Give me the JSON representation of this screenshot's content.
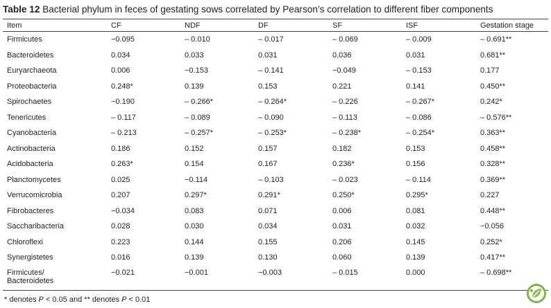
{
  "caption": {
    "label": "Table 12",
    "text": "Bacterial phylum in feces of gestating sows correlated by Pearson’s correlation to different fiber components"
  },
  "table": {
    "headers": [
      "Item",
      "CF",
      "NDF",
      "DF",
      "SF",
      "ISF",
      "Gestation stage"
    ],
    "rows": [
      [
        "Firmicutes",
        "−0.095",
        "– 0.010",
        "– 0.017",
        "– 0.069",
        "– 0.009",
        "– 0.691**"
      ],
      [
        "Bacteroidetes",
        "0.034",
        "0.033",
        "0.031",
        "0.036",
        "0.031",
        "0.681**"
      ],
      [
        "Euryarchaeota",
        "0.006",
        "−0.153",
        "– 0.141",
        "−0.049",
        "– 0.153",
        "0.177"
      ],
      [
        "Proteobacteria",
        "0.248*",
        "0.139",
        "0.153",
        "0.221",
        "0.141",
        "0.450**"
      ],
      [
        "Spirochaetes",
        "−0.190",
        "– 0.266*",
        "– 0.264*",
        "– 0.226",
        "– 0.267*",
        "0.242*"
      ],
      [
        "Tenericutes",
        "– 0.117",
        "– 0.089",
        "– 0.090",
        "– 0.113",
        "– 0.086",
        "– 0.576**"
      ],
      [
        "Cyanobacteria",
        "– 0.213",
        "– 0.257*",
        "– 0.253*",
        "– 0.238*",
        "– 0.254*",
        "0.363**"
      ],
      [
        "Actinobacteria",
        "0.186",
        "0.152",
        "0.157",
        "0.182",
        "0.153",
        "0.458**"
      ],
      [
        "Acidobacteria",
        "0.263*",
        "0.154",
        "0.167",
        "0.236*",
        "0.156",
        "0.328**"
      ],
      [
        "Planctomycetes",
        "0.025",
        "−0.114",
        "– 0.103",
        "– 0.023",
        "– 0.114",
        "0.369**"
      ],
      [
        "Verrucomicrobia",
        "0.207",
        "0.297*",
        "0.291*",
        "0.250*",
        "0.295*",
        "0.227"
      ],
      [
        "Fibrobacteres",
        "−0.034",
        "0.083",
        "0.071",
        "0.006",
        "0.081",
        "0.448**"
      ],
      [
        "Saccharibacteria",
        "0.028",
        "0.030",
        "0.034",
        "0.031",
        "0.032",
        "−0.056"
      ],
      [
        "Chloroflexi",
        "0.223",
        "0.144",
        "0.155",
        "0.206",
        "0.145",
        "0.252*"
      ],
      [
        "Synergistetes",
        "0.016",
        "0.139",
        "0.130",
        "0.060",
        "0.139",
        "0.417**"
      ],
      [
        "Firmicutes/\nBacteroidetes",
        "−0.021",
        "−0.001",
        "−0.003",
        "– 0.015",
        "0.000",
        "– 0.698**"
      ]
    ]
  },
  "footnote": {
    "part1": "* denotes ",
    "p1": "P",
    "part2": " < 0.05 and ** denotes ",
    "p2": "P",
    "part3": " < 0.01"
  },
  "badge": {
    "icon": "springer-open-leaf-icon",
    "ring_color": "#7cb342",
    "fill_color": "#ffffff"
  }
}
